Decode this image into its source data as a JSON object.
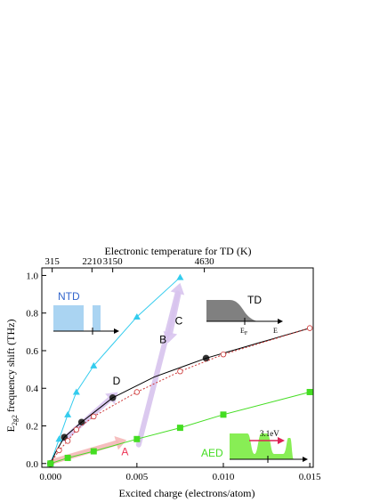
{
  "chart_data": {
    "type": "line",
    "xlabel": "Excited charge (electrons/atom)",
    "ylabel_main": "E",
    "ylabel_sub": "2g2",
    "ylabel_rest": " frequency shift (THz)",
    "top_axis_label": "Electronic temperature for TD (K)",
    "xlim": [
      -0.0005,
      0.0152
    ],
    "ylim": [
      -0.02,
      1.04
    ],
    "x_ticks": [
      0.0,
      0.005,
      0.01,
      0.015
    ],
    "x_tick_labels": [
      "0.000",
      "0.005",
      "0.010",
      "0.015"
    ],
    "y_ticks": [
      0.0,
      0.2,
      0.4,
      0.6,
      0.8,
      1.0
    ],
    "y_tick_labels": [
      "0.0",
      "0.2",
      "0.4",
      "0.6",
      "0.8",
      "1.0"
    ],
    "top_ticks": [
      {
        "x": 0.0001,
        "label": "315"
      },
      {
        "x": 0.0024,
        "label": "2210"
      },
      {
        "x": 0.0036,
        "label": "3150"
      },
      {
        "x": 0.0089,
        "label": "4630"
      }
    ],
    "series": [
      {
        "id": "ntd",
        "marker": "triangle",
        "color": "#33ccee",
        "points": [
          [
            0,
            0
          ],
          [
            0.0005,
            0.13
          ],
          [
            0.001,
            0.26
          ],
          [
            0.0015,
            0.38
          ],
          [
            0.0025,
            0.52
          ],
          [
            0.005,
            0.78
          ],
          [
            0.0075,
            0.99
          ]
        ]
      },
      {
        "id": "td-filled",
        "marker": "filled-circle",
        "color": "#333333",
        "points": [
          [
            0,
            0
          ],
          [
            0.0008,
            0.14
          ],
          [
            0.0018,
            0.22
          ],
          [
            0.0036,
            0.35
          ],
          [
            0.009,
            0.56
          ]
        ]
      },
      {
        "id": "td-smooth",
        "marker": "none",
        "color": "#000000",
        "points": [
          [
            0,
            0
          ],
          [
            0.0003,
            0.06
          ],
          [
            0.0008,
            0.14
          ],
          [
            0.0018,
            0.22
          ],
          [
            0.0036,
            0.35
          ],
          [
            0.006,
            0.46
          ],
          [
            0.009,
            0.56
          ],
          [
            0.012,
            0.64
          ],
          [
            0.015,
            0.72
          ]
        ]
      },
      {
        "id": "td-open",
        "marker": "open-circle",
        "color": "#cc3333",
        "points": [
          [
            0,
            0
          ],
          [
            0.0005,
            0.07
          ],
          [
            0.001,
            0.12
          ],
          [
            0.0015,
            0.18
          ],
          [
            0.0025,
            0.25
          ],
          [
            0.005,
            0.38
          ],
          [
            0.0075,
            0.49
          ],
          [
            0.01,
            0.58
          ],
          [
            0.015,
            0.72
          ]
        ]
      },
      {
        "id": "aed",
        "marker": "square",
        "color": "#44dd22",
        "points": [
          [
            0,
            0
          ],
          [
            0.001,
            0.03
          ],
          [
            0.0025,
            0.065
          ],
          [
            0.005,
            0.13
          ],
          [
            0.0075,
            0.19
          ],
          [
            0.01,
            0.26
          ],
          [
            0.015,
            0.38
          ]
        ]
      }
    ],
    "annotations": [
      {
        "text": "A",
        "x": 0.0041,
        "y": 0.045,
        "color": "#ee3355"
      },
      {
        "text": "B",
        "x": 0.0063,
        "y": 0.64,
        "color": "#000000"
      },
      {
        "text": "C",
        "x": 0.0072,
        "y": 0.74,
        "color": "#000000"
      },
      {
        "text": "D",
        "x": 0.0036,
        "y": 0.42,
        "color": "#000000"
      }
    ],
    "arrows": [
      {
        "from": [
          0.0001,
          0.01
        ],
        "to": [
          0.0044,
          0.125
        ],
        "color": "#f5b8b8"
      },
      {
        "from": [
          0.0051,
          0.1
        ],
        "to": [
          0.0075,
          0.96
        ],
        "color": "#d8c4ee"
      },
      {
        "from": [
          0.0074,
          0.9
        ],
        "to": [
          0.0068,
          0.64
        ],
        "color": "#d8c4ee"
      },
      {
        "from": [
          0.0008,
          0.13
        ],
        "to": [
          0.0039,
          0.38
        ],
        "color": "#d8c4ee"
      }
    ],
    "insets": {
      "ntd_label": "NTD",
      "td_label": "TD",
      "td_axis_ef": "E",
      "td_axis_ef_sub": "F",
      "td_axis_e": "E",
      "aed_label": "AED",
      "aed_energy": "3.1eV"
    },
    "colors": {
      "ntd": "#33ccee",
      "td_fill": "#808080",
      "ntd_fill": "#aad4f2",
      "aed_fill": "#88ee55",
      "aed": "#44dd22",
      "arrow_red": "#dd2255"
    }
  }
}
